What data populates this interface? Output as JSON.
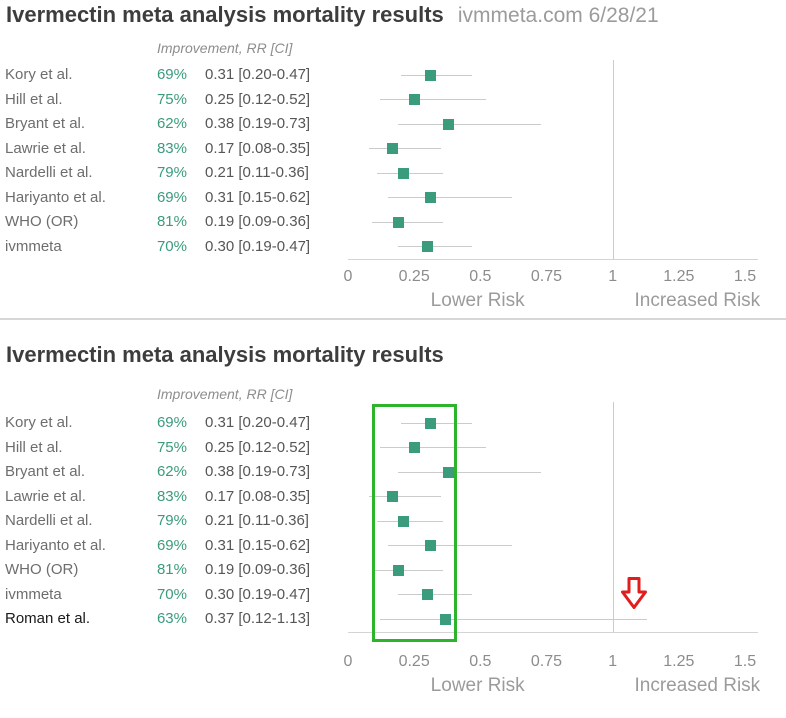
{
  "colors": {
    "marker_green": "#3a9b7d",
    "ci_gray": "#cbcbcb",
    "highlight_green": "#2cb52c",
    "arrow_red": "#e11d1d"
  },
  "chart_data": [
    {
      "type": "forest",
      "title": "Ivermectin meta analysis mortality results",
      "source": "ivmmeta.com 6/28/21",
      "column_header": "Improvement, RR [CI]",
      "x_tick_values": [
        0,
        0.25,
        0.5,
        0.75,
        1,
        1.25,
        1.5
      ],
      "x_tick_labels": [
        "0",
        "0.25",
        "0.5",
        "0.75",
        "1",
        "1.25",
        "1.5"
      ],
      "xlim": [
        0,
        1.55
      ],
      "reference_line": 1,
      "axis_label_lower": "Lower Risk",
      "axis_label_increased": "Increased Risk",
      "studies": [
        {
          "name": "Kory et al.",
          "improvement": "69%",
          "rr_label": "0.31 [0.20-0.47]",
          "rr": 0.31,
          "ci": [
            0.2,
            0.47
          ]
        },
        {
          "name": "Hill et al.",
          "improvement": "75%",
          "rr_label": "0.25 [0.12-0.52]",
          "rr": 0.25,
          "ci": [
            0.12,
            0.52
          ]
        },
        {
          "name": "Bryant et al.",
          "improvement": "62%",
          "rr_label": "0.38 [0.19-0.73]",
          "rr": 0.38,
          "ci": [
            0.19,
            0.73
          ]
        },
        {
          "name": "Lawrie et al.",
          "improvement": "83%",
          "rr_label": "0.17 [0.08-0.35]",
          "rr": 0.17,
          "ci": [
            0.08,
            0.35
          ]
        },
        {
          "name": "Nardelli et al.",
          "improvement": "79%",
          "rr_label": "0.21 [0.11-0.36]",
          "rr": 0.21,
          "ci": [
            0.11,
            0.36
          ]
        },
        {
          "name": "Hariyanto et al.",
          "improvement": "69%",
          "rr_label": "0.31 [0.15-0.62]",
          "rr": 0.31,
          "ci": [
            0.15,
            0.62
          ]
        },
        {
          "name": "WHO (OR)",
          "improvement": "81%",
          "rr_label": "0.19 [0.09-0.36]",
          "rr": 0.19,
          "ci": [
            0.09,
            0.36
          ]
        },
        {
          "name": "ivmmeta",
          "improvement": "70%",
          "rr_label": "0.30 [0.19-0.47]",
          "rr": 0.3,
          "ci": [
            0.19,
            0.47
          ]
        }
      ]
    },
    {
      "type": "forest",
      "title": "Ivermectin meta analysis mortality results",
      "column_header": "Improvement, RR [CI]",
      "x_tick_values": [
        0,
        0.25,
        0.5,
        0.75,
        1,
        1.25,
        1.5
      ],
      "x_tick_labels": [
        "0",
        "0.25",
        "0.5",
        "0.75",
        "1",
        "1.25",
        "1.5"
      ],
      "xlim": [
        0,
        1.55
      ],
      "reference_line": 1,
      "axis_label_lower": "Lower Risk",
      "axis_label_increased": "Increased Risk",
      "studies": [
        {
          "name": "Kory et al.",
          "improvement": "69%",
          "rr_label": "0.31 [0.20-0.47]",
          "rr": 0.31,
          "ci": [
            0.2,
            0.47
          ]
        },
        {
          "name": "Hill et al.",
          "improvement": "75%",
          "rr_label": "0.25 [0.12-0.52]",
          "rr": 0.25,
          "ci": [
            0.12,
            0.52
          ]
        },
        {
          "name": "Bryant et al.",
          "improvement": "62%",
          "rr_label": "0.38 [0.19-0.73]",
          "rr": 0.38,
          "ci": [
            0.19,
            0.73
          ]
        },
        {
          "name": "Lawrie et al.",
          "improvement": "83%",
          "rr_label": "0.17 [0.08-0.35]",
          "rr": 0.17,
          "ci": [
            0.08,
            0.35
          ]
        },
        {
          "name": "Nardelli et al.",
          "improvement": "79%",
          "rr_label": "0.21 [0.11-0.36]",
          "rr": 0.21,
          "ci": [
            0.11,
            0.36
          ]
        },
        {
          "name": "Hariyanto et al.",
          "improvement": "69%",
          "rr_label": "0.31 [0.15-0.62]",
          "rr": 0.31,
          "ci": [
            0.15,
            0.62
          ]
        },
        {
          "name": "WHO (OR)",
          "improvement": "81%",
          "rr_label": "0.19 [0.09-0.36]",
          "rr": 0.19,
          "ci": [
            0.09,
            0.36
          ]
        },
        {
          "name": "ivmmeta",
          "improvement": "70%",
          "rr_label": "0.30 [0.19-0.47]",
          "rr": 0.3,
          "ci": [
            0.19,
            0.47
          ]
        },
        {
          "name": "Roman et al.",
          "improvement": "63%",
          "rr_label": "0.37 [0.12-1.13]",
          "rr": 0.37,
          "ci": [
            0.12,
            1.13
          ],
          "emphasis": true
        }
      ],
      "annotations": {
        "highlight_box": {
          "x_min": 0.1,
          "x_max": 0.42
        },
        "down_arrow": {
          "x": 1.08
        }
      }
    }
  ]
}
